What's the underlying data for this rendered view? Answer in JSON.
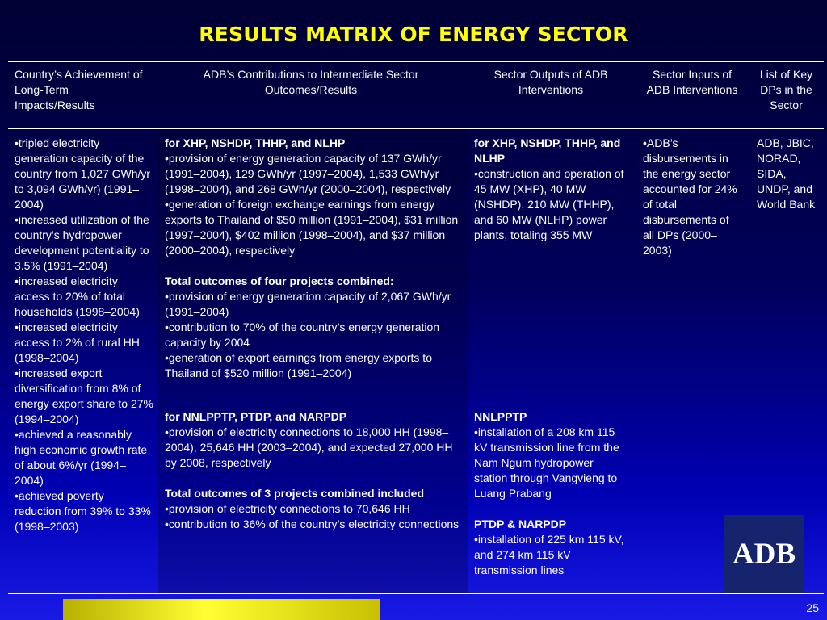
{
  "title": "RESULTS MATRIX OF ENERGY SECTOR",
  "headers": {
    "col1": "Country’s Achievement of Long-Term Impacts/Results",
    "col2": "ADB’s Contributions to Intermediate Sector Outcomes/Results",
    "col3": "Sector Outputs of ADB Interventions",
    "col4": "Sector Inputs of ADB Interventions",
    "col5": "List of Key DPs in the Sector"
  },
  "col1": [
    "•tripled electricity generation capacity of the country from 1,027 GWh/yr to 3,094 GWh/yr) (1991–2004)",
    "•increased utilization of the country’s hydropower development potentiality to 3.5% (1991–2004)",
    "•increased electricity access to 20% of total households (1998–2004)",
    "•increased electricity access to 2% of rural HH (1998–2004)",
    "•increased export diversification from 8% of energy export share to 27% (1994–2004)",
    "•achieved a reasonably high economic growth rate of about 6%/yr (1994–2004)",
    "•achieved poverty reduction from 39% to 33% (1998–2003)"
  ],
  "col2": {
    "group1_head": "for XHP, NSHDP, THHP, and NLHP",
    "group1_items": [
      "•provision of energy generation capacity of 137 GWh/yr (1991–2004), 129 GWh/yr (1997–2004), 1,533 GWh/yr (1998–2004), and 268 GWh/yr (2000–2004), respectively",
      "•generation of foreign exchange earnings from energy exports to Thailand of $50 million (1991–2004), $31 million (1997–2004), $402 million (1998–2004), and $37 million (2000–2004), respectively"
    ],
    "total1_head": "Total outcomes of four projects combined:",
    "total1_items": [
      "•provision of energy generation capacity of 2,067 GWh/yr (1991–2004)",
      "•contribution to 70% of the country’s energy generation capacity by 2004",
      "•generation of export earnings from energy exports to Thailand of $520 million (1991–2004)"
    ],
    "group2_head": "for NNLPPTP, PTDP, and NARPDP",
    "group2_items": [
      "•provision of electricity connections to 18,000 HH (1998–2004), 25,646 HH (2003–2004), and expected 27,000 HH by 2008, respectively"
    ],
    "total2_head": "Total outcomes of 3 projects combined included",
    "total2_items": [
      "•provision of electricity connections to 70,646 HH",
      "•contribution to 36% of the country’s electricity connections"
    ]
  },
  "col3": {
    "group1_head": "for XHP, NSHDP, THHP, and NLHP",
    "group1_item": "•construction and operation of 45 MW (XHP), 40 MW (NSHDP), 210 MW (THHP), and 60 MW (NLHP) power plants, totaling 355 MW",
    "group2_head": "NNLPPTP",
    "group2_item": "•installation of a 208 km 115 kV transmission line from the Nam Ngum hydropower station through Vangvieng to Luang Prabang",
    "group3_head": "PTDP & NARPDP",
    "group3_item": "•installation of 225 km 115 kV, and 274 km 115 kV transmission lines"
  },
  "col4": "•ADB’s disbursements in the energy sector accounted for 24% of total disbursements of all DPs (2000–2003)",
  "col5": "ADB, JBIC, NORAD, SIDA, UNDP, and World Bank",
  "logo_text": "ADB",
  "page_number": "25"
}
